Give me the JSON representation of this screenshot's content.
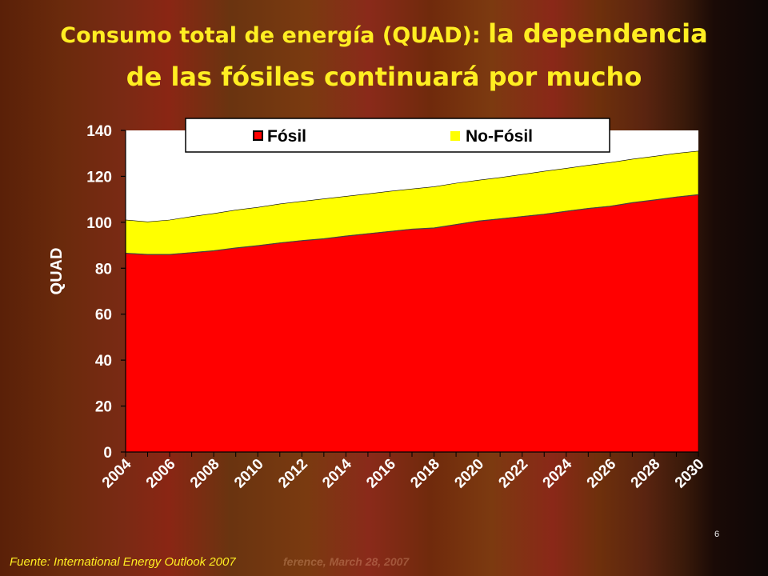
{
  "slide": {
    "title_part1": "Consumo total de energía (QUAD): ",
    "title_part2": "la dependencia",
    "title_part3": "de las fósiles continuará por mucho",
    "footer": "Fuente: International Energy Outlook 2007",
    "footer_ghost": "ference, March 28, 2007",
    "page_number": "6"
  },
  "colors": {
    "fossil": "#ff0000",
    "non_fossil": "#ffff00",
    "plot_background": "#ffffff",
    "axis_text": "#ffffff"
  },
  "chart_data": {
    "type": "area",
    "stacked": true,
    "title": "",
    "xlabel": "",
    "ylabel": "QUAD",
    "ylim": [
      0,
      140
    ],
    "yticks": [
      0,
      20,
      40,
      60,
      80,
      100,
      120,
      140
    ],
    "xticks": [
      "2004",
      "2006",
      "2008",
      "2010",
      "2012",
      "2014",
      "2016",
      "2018",
      "2020",
      "2022",
      "2024",
      "2026",
      "2028",
      "2030"
    ],
    "legend_position": "top",
    "x": [
      2004,
      2005,
      2006,
      2007,
      2008,
      2009,
      2010,
      2011,
      2012,
      2013,
      2014,
      2015,
      2016,
      2017,
      2018,
      2019,
      2020,
      2021,
      2022,
      2023,
      2024,
      2025,
      2026,
      2027,
      2028,
      2029,
      2030
    ],
    "series": [
      {
        "name": "Fósil",
        "color": "#ff0000",
        "values": [
          86.5,
          86,
          86,
          86.8,
          87.6,
          88.8,
          89.8,
          91,
          92,
          92.8,
          94,
          95,
          96,
          97,
          97.5,
          99,
          100.5,
          101.5,
          102.5,
          103.5,
          104.8,
          106,
          107,
          108.5,
          109.7,
          111,
          112
        ]
      },
      {
        "name": "No-Fósil",
        "color": "#ffff00",
        "values": [
          14.5,
          14.2,
          15,
          15.7,
          16.2,
          16.5,
          16.7,
          17,
          17.1,
          17.4,
          17.3,
          17.4,
          17.5,
          17.5,
          18,
          18,
          17.8,
          18,
          18.3,
          18.7,
          18.7,
          18.8,
          19,
          19,
          19,
          19,
          19
        ]
      }
    ]
  }
}
